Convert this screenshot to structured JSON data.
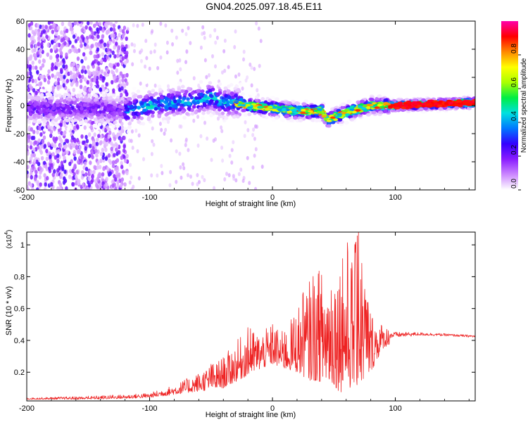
{
  "title": "GN04.2025.097.18.45.E11",
  "chart_data": [
    {
      "type": "heatmap",
      "xlabel": "Height of straight line (km)",
      "ylabel": "Frequency (Hz)",
      "xlim": [
        -200,
        165
      ],
      "ylim": [
        -60,
        60
      ],
      "xticks": [
        -200,
        -100,
        0,
        100
      ],
      "yticks": [
        -60,
        -40,
        -20,
        0,
        20,
        40,
        60
      ],
      "grid": false,
      "ridge": {
        "x": [
          -200,
          -150,
          -120,
          -100,
          -80,
          -60,
          -50,
          -40,
          -30,
          -20,
          0,
          20,
          40,
          45,
          60,
          80,
          100,
          165
        ],
        "y": [
          -2,
          -2,
          -4,
          0,
          2,
          4,
          6,
          2,
          2,
          0,
          -2,
          -4,
          -4,
          -10,
          -5,
          0,
          0,
          2
        ]
      },
      "colorbar": {
        "label": "Normalized spectral amplitude",
        "range": [
          0,
          1
        ],
        "ticks": [
          "0.0",
          "0.2",
          "0.4",
          "0.6",
          "0.8"
        ],
        "tick_values": [
          0.0,
          0.2,
          0.4,
          0.6,
          0.8
        ],
        "colormap": [
          "#ffffff",
          "#cc88ff",
          "#8a1cff",
          "#3300ff",
          "#0077ff",
          "#00e0e0",
          "#00ee44",
          "#aaff00",
          "#ffff00",
          "#ff8800",
          "#ff0000",
          "#ff00aa"
        ]
      }
    },
    {
      "type": "line",
      "xlabel": "Height of straight line (km)",
      "ylabel": "SNR (10 * v/v)",
      "yscale_label": "(x10",
      "yscale_exp": "4",
      "yscale_close": ")",
      "xlim": [
        -200,
        165
      ],
      "ylim": [
        0.02,
        1.08
      ],
      "xticks": [
        -200,
        -100,
        0,
        100
      ],
      "yticks": [
        0.2,
        0.4,
        0.6,
        0.8,
        1
      ],
      "color": "#ee2222",
      "envelope": {
        "x": [
          -200,
          -150,
          -120,
          -100,
          -80,
          -60,
          -40,
          -20,
          -10,
          0,
          10,
          20,
          30,
          40,
          50,
          55,
          60,
          65,
          70,
          75,
          80,
          90,
          100,
          120,
          140,
          165
        ],
        "base": [
          0.03,
          0.03,
          0.035,
          0.04,
          0.06,
          0.08,
          0.1,
          0.18,
          0.22,
          0.25,
          0.22,
          0.2,
          0.15,
          0.14,
          0.12,
          0.07,
          0.1,
          0.1,
          0.12,
          0.15,
          0.2,
          0.35,
          0.4,
          0.42,
          0.42,
          0.41
        ],
        "top": [
          0.04,
          0.05,
          0.06,
          0.07,
          0.12,
          0.2,
          0.3,
          0.48,
          0.45,
          0.5,
          0.45,
          0.62,
          0.78,
          0.85,
          0.98,
          0.8,
          1.07,
          0.95,
          1.08,
          0.9,
          0.6,
          0.5,
          0.47,
          0.46,
          0.45,
          0.44
        ],
        "peak_x": [
          -150,
          -130,
          -50,
          -20,
          -18,
          0,
          10,
          25,
          33,
          38,
          55,
          57,
          70,
          69,
          67
        ]
      }
    }
  ]
}
